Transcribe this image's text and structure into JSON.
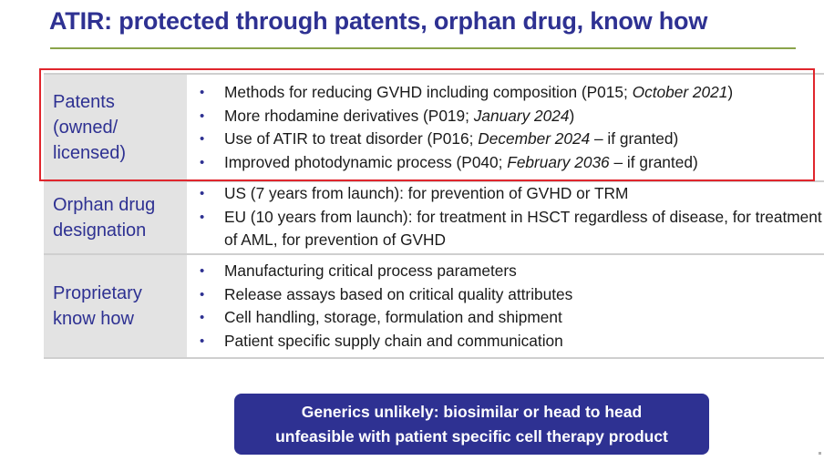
{
  "slide": {
    "title": "ATIR: protected through patents, orphan drug, know how"
  },
  "table": {
    "rows": [
      {
        "label_lines": [
          "Patents",
          "(owned/",
          "licensed)"
        ],
        "items": [
          {
            "text": "Methods for reducing GVHD including composition (P015; ",
            "italic": "October 2021",
            "tail": ")"
          },
          {
            "text": "More rhodamine derivatives (P019; ",
            "italic": "January 2024",
            "tail": ")"
          },
          {
            "text": "Use of ATIR to treat disorder (P016; ",
            "italic": "December 2024",
            "tail": " – if granted)"
          },
          {
            "text": "Improved photodynamic process (P040; ",
            "italic": "February 2036",
            "tail": " – if granted)"
          }
        ]
      },
      {
        "label_lines": [
          "Orphan drug",
          "designation"
        ],
        "items": [
          {
            "text": "US (7 years from launch): for prevention of GVHD or TRM"
          },
          {
            "text": "EU (10 years from launch): for treatment in HSCT regardless of disease, for treatment of AML, for prevention of GVHD"
          }
        ]
      },
      {
        "label_lines": [
          "Proprietary",
          "know how"
        ],
        "items": [
          {
            "text": "Manufacturing critical process parameters"
          },
          {
            "text": "Release assays based on critical quality attributes"
          },
          {
            "text": "Cell handling, storage, formulation and shipment"
          },
          {
            "text": "Patient specific supply chain and communication"
          }
        ]
      }
    ]
  },
  "callout": {
    "line1": "Generics unlikely: biosimilar or head to head",
    "line2": "unfeasible with patient specific cell therapy product"
  },
  "colors": {
    "title": "#2e3192",
    "rule": "#8aa44a",
    "highlight_border": "#e0262d",
    "label_bg": "#e3e3e3",
    "callout_bg": "#2e3192"
  },
  "icons": {
    "bullet": "bullet-dot-icon"
  }
}
